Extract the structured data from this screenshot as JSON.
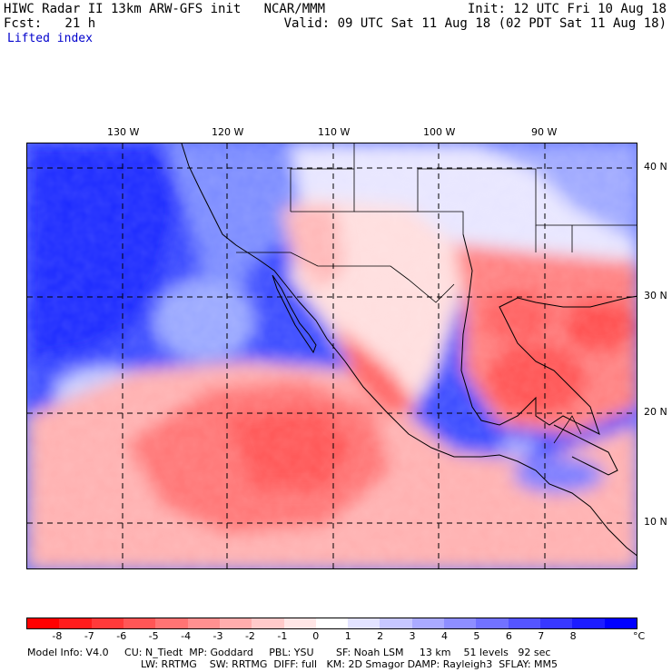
{
  "header": {
    "title": "HIWC Radar II 13km ARW-GFS init   NCAR/MMM",
    "init": "Init: 12 UTC Fri 10 Aug 18",
    "forecast": "Fcst:   21 h",
    "valid": "Valid: 09 UTC Sat 11 Aug 18 (02 PDT Sat 11 Aug 18)",
    "field": "Lifted index"
  },
  "map": {
    "longitude_labels": [
      "130 W",
      "120 W",
      "110 W",
      "100 W",
      "90 W"
    ],
    "latitude_labels": [
      "40 N",
      "30 N",
      "20 N",
      "10 N"
    ]
  },
  "colorbar": {
    "tick_labels": [
      "-8",
      "-7",
      "-6",
      "-5",
      "-4",
      "-3",
      "-2",
      "-1",
      "0",
      "1",
      "2",
      "3",
      "4",
      "5",
      "6",
      "7",
      "8"
    ],
    "unit": "°C",
    "colors": [
      "#ff0000",
      "#ff1c1c",
      "#ff3a3a",
      "#ff5656",
      "#ff7474",
      "#ff9090",
      "#ffadad",
      "#ffcaca",
      "#ffe6e6",
      "#ffffff",
      "#e3e3ff",
      "#c7c7ff",
      "#aaaaff",
      "#8e8eff",
      "#7272ff",
      "#5555ff",
      "#3838ff",
      "#1c1cff",
      "#0000ff"
    ]
  },
  "footer": {
    "line1": "Model Info: V4.0     CU: N_Tiedt  MP: Goddard     PBL: YSU       SF: Noah LSM     13 km    51 levels   92 sec",
    "line2": "LW: RRTMG    SW: RRTMG  DIFF: full   KM: 2D Smagor DAMP: Rayleigh3  SFLAY: MM5"
  }
}
